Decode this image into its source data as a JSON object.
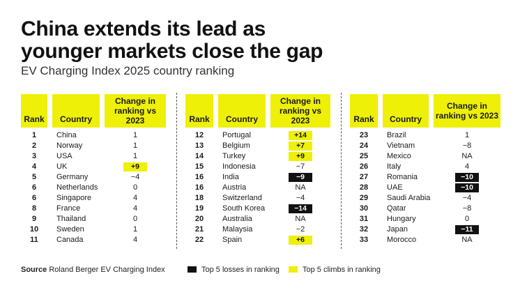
{
  "title_line1": "China extends its lead as",
  "title_line2": "younger markets close the gap",
  "subtitle": "EV Charging Index 2025 country ranking",
  "headers": {
    "rank": "Rank",
    "country": "Country",
    "change_l1": "Change in",
    "change_l2": "ranking vs 2023"
  },
  "footer": {
    "source_label": "Source",
    "source_text": "Roland Berger EV Charging Index",
    "losses_label": "Top 5 losses in ranking",
    "climbs_label": "Top 5 climbs in ranking"
  },
  "colors": {
    "highlight_yellow": "#eef007",
    "loss_black": "#111111"
  },
  "chart_data": {
    "type": "table",
    "columns": [
      "Rank",
      "Country",
      "Change in ranking vs 2023"
    ],
    "panels": [
      [
        {
          "rank": "1",
          "country": "China",
          "change": "1",
          "hl": ""
        },
        {
          "rank": "2",
          "country": "Norway",
          "change": "1",
          "hl": ""
        },
        {
          "rank": "3",
          "country": "USA",
          "change": "1",
          "hl": ""
        },
        {
          "rank": "4",
          "country": "UK",
          "change": "+9",
          "hl": "up"
        },
        {
          "rank": "5",
          "country": "Germany",
          "change": "-4",
          "hl": ""
        },
        {
          "rank": "6",
          "country": "Netherlands",
          "change": "0",
          "hl": ""
        },
        {
          "rank": "6",
          "country": "Singapore",
          "change": "4",
          "hl": ""
        },
        {
          "rank": "8",
          "country": "France",
          "change": "4",
          "hl": ""
        },
        {
          "rank": "9",
          "country": "Thailand",
          "change": "0",
          "hl": ""
        },
        {
          "rank": "10",
          "country": "Sweden",
          "change": "1",
          "hl": ""
        },
        {
          "rank": "11",
          "country": "Canada",
          "change": "4",
          "hl": ""
        }
      ],
      [
        {
          "rank": "12",
          "country": "Portugal",
          "change": "+14",
          "hl": "up"
        },
        {
          "rank": "13",
          "country": "Belgium",
          "change": "+7",
          "hl": "up"
        },
        {
          "rank": "14",
          "country": "Turkey",
          "change": "+9",
          "hl": "up"
        },
        {
          "rank": "15",
          "country": "Indonesia",
          "change": "-7",
          "hl": ""
        },
        {
          "rank": "16",
          "country": "India",
          "change": "-9",
          "hl": "down"
        },
        {
          "rank": "16",
          "country": "Austria",
          "change": "NA",
          "hl": ""
        },
        {
          "rank": "18",
          "country": "Switzerland",
          "change": "-4",
          "hl": ""
        },
        {
          "rank": "19",
          "country": "South Korea",
          "change": "-14",
          "hl": "down"
        },
        {
          "rank": "20",
          "country": "Australia",
          "change": "NA",
          "hl": ""
        },
        {
          "rank": "21",
          "country": "Malaysia",
          "change": "-2",
          "hl": ""
        },
        {
          "rank": "22",
          "country": "Spain",
          "change": "+6",
          "hl": "up"
        }
      ],
      [
        {
          "rank": "23",
          "country": "Brazil",
          "change": "1",
          "hl": ""
        },
        {
          "rank": "24",
          "country": "Vietnam",
          "change": "-8",
          "hl": ""
        },
        {
          "rank": "25",
          "country": "Mexico",
          "change": "NA",
          "hl": ""
        },
        {
          "rank": "26",
          "country": "Italy",
          "change": "4",
          "hl": ""
        },
        {
          "rank": "27",
          "country": "Romania",
          "change": "-10",
          "hl": "down"
        },
        {
          "rank": "28",
          "country": "UAE",
          "change": "-10",
          "hl": "down"
        },
        {
          "rank": "29",
          "country": "Saudi Arabia",
          "change": "-4",
          "hl": ""
        },
        {
          "rank": "30",
          "country": "Qatar",
          "change": "-8",
          "hl": ""
        },
        {
          "rank": "31",
          "country": "Hungary",
          "change": "0",
          "hl": ""
        },
        {
          "rank": "32",
          "country": "Japan",
          "change": "-11",
          "hl": "down"
        },
        {
          "rank": "33",
          "country": "Morocco",
          "change": "NA",
          "hl": ""
        }
      ]
    ]
  }
}
